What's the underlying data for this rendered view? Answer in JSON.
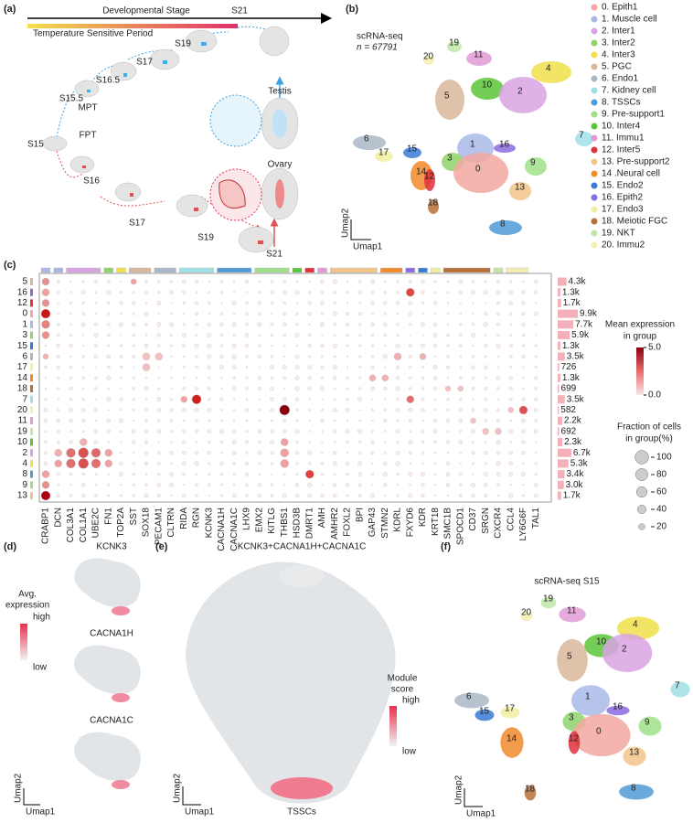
{
  "panel_a": {
    "label": "(a)",
    "stage_arrow": "Developmental Stage",
    "temp_period": "Temperature Sensitive Period",
    "male": {
      "start": "S15",
      "stages": [
        "S15.5",
        "S16.5",
        "S17",
        "S19",
        "S21"
      ],
      "tag": "MPT",
      "organ": "Testis"
    },
    "female": {
      "stages": [
        "S16",
        "S17",
        "S19",
        "S21"
      ],
      "tag": "FPT",
      "organ": "Ovary"
    }
  },
  "panel_b": {
    "label": "(b)",
    "title": "scRNA-seq",
    "n": "n = 67791",
    "xlabel": "Umap1",
    "ylabel": "Umap2",
    "umap_labels": [
      "19",
      "20",
      "11",
      "4",
      "10",
      "2",
      "5",
      "1",
      "16",
      "7",
      "6",
      "15",
      "17",
      "3",
      "9",
      "14",
      "0",
      "12",
      "13",
      "18",
      "8"
    ],
    "legend": [
      {
        "label": "0. Epith1",
        "color": "#f2a8a0"
      },
      {
        "label": "1. Muscle cell",
        "color": "#a9b8e6"
      },
      {
        "label": "2. Inter1",
        "color": "#d9a3e3"
      },
      {
        "label": "3. Inter2",
        "color": "#8fd36a"
      },
      {
        "label": "4. Inter3",
        "color": "#f0e14a"
      },
      {
        "label": "5. PGC",
        "color": "#d8b79a"
      },
      {
        "label": "6. Endo1",
        "color": "#a9b7c6"
      },
      {
        "label": "7. Kidney cell",
        "color": "#9fe0e6"
      },
      {
        "label": "8. TSSCs",
        "color": "#4f9ad6"
      },
      {
        "label": "9. Pre-support1",
        "color": "#9fe08a"
      },
      {
        "label": "10. Inter4",
        "color": "#5cc43a"
      },
      {
        "label": "11. Immu1",
        "color": "#e29ad6"
      },
      {
        "label": "12. Inter5",
        "color": "#e0303a"
      },
      {
        "label": "13. Pre-support2",
        "color": "#f2c48a"
      },
      {
        "label": "14 .Neural cell",
        "color": "#f08a2a"
      },
      {
        "label": "15. Endo2",
        "color": "#3a7ad6"
      },
      {
        "label": "16. Epith2",
        "color": "#8a6ae0"
      },
      {
        "label": "17. Endo3",
        "color": "#f2efa0"
      },
      {
        "label": "18. Meiotic FGC",
        "color": "#b8703a"
      },
      {
        "label": "19. NKT",
        "color": "#bfe8a8"
      },
      {
        "label": "20. Immu2",
        "color": "#f4eeb0"
      }
    ]
  },
  "panel_c": {
    "label": "(c)",
    "rows": [
      "5",
      "16",
      "12",
      "0",
      "1",
      "3",
      "15",
      "6",
      "17",
      "14",
      "18",
      "7",
      "20",
      "11",
      "19",
      "10",
      "2",
      "4",
      "8",
      "9",
      "13"
    ],
    "genes": [
      "CRABP1",
      "DCN",
      "COL3A1",
      "COL1A1",
      "UBE2C",
      "FN1",
      "TOP2A",
      "SST",
      "SOX18",
      "PECAM1",
      "CLTRN",
      "RIDA",
      "RGN",
      "KCNK3",
      "CACNA1H",
      "CACNA1C",
      "LHX9",
      "EMX2",
      "KITLG",
      "THBS1",
      "HSD3B",
      "DMRT1",
      "AMH",
      "AMHR2",
      "FOXL2",
      "BPI",
      "GAP43",
      "STMN2",
      "KDRL",
      "FXYD6",
      "KDR",
      "KRT18",
      "SMC1B",
      "SPOCD1",
      "CD37",
      "SRGN",
      "CXCR4",
      "CCL4",
      "LY6G6F",
      "TAL1"
    ],
    "cell_counts": [
      {
        "value": 4300,
        "label": "4.3k"
      },
      {
        "value": 1300,
        "label": "1.3k"
      },
      {
        "value": 1700,
        "label": "1.7k"
      },
      {
        "value": 9900,
        "label": "9.9k"
      },
      {
        "value": 7700,
        "label": "7.7k"
      },
      {
        "value": 5900,
        "label": "5.9k"
      },
      {
        "value": 1300,
        "label": "1.3k"
      },
      {
        "value": 3500,
        "label": "3.5k"
      },
      726,
      {
        "value": 1300,
        "label": "1.3k"
      },
      699,
      {
        "value": 3500,
        "label": "3.5k"
      },
      582,
      {
        "value": 2200,
        "label": "2.2k"
      },
      692,
      {
        "value": 2300,
        "label": "2.3k"
      },
      {
        "value": 6700,
        "label": "6.7k"
      },
      {
        "value": 5300,
        "label": "5.3k"
      },
      {
        "value": 3400,
        "label": "3.4k"
      },
      {
        "value": 3000,
        "label": "3.0k"
      },
      {
        "value": 1700,
        "label": "1.7k"
      }
    ],
    "color_legend": {
      "title": [
        "Mean expression",
        "in group"
      ],
      "ticks": [
        {
          "value": 0,
          "label": "0.0"
        },
        {
          "value": 5,
          "label": "5.0"
        }
      ]
    },
    "size_legend": {
      "title": [
        "Fraction of cells",
        "in group(%)"
      ],
      "ticks": [
        100,
        80,
        60,
        40,
        20
      ]
    }
  },
  "panel_d": {
    "label": "(d)",
    "genes": [
      "KCNK3",
      "CACNA1H",
      "CACNA1C"
    ],
    "legend_title": [
      "Avg.",
      "expression"
    ],
    "high": "high",
    "low": "low",
    "xlabel": "Umap1",
    "ylabel": "Umap2"
  },
  "panel_e": {
    "label": "(e)",
    "title": "KCNK3+CACNA1H+CACNA1C",
    "legend_title": [
      "Module",
      "score"
    ],
    "high": "high",
    "low": "low",
    "cluster": "TSSCs",
    "xlabel": "Umap1",
    "ylabel": "Umap2"
  },
  "panel_f": {
    "label": "(f)",
    "title": "scRNA-seq S15",
    "xlabel": "Umap1",
    "ylabel": "Umap2"
  }
}
